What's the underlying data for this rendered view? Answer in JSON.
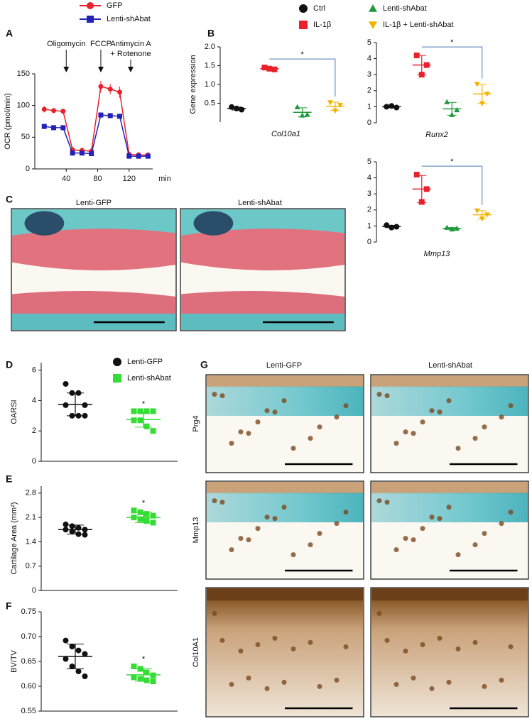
{
  "chart_data": [
    {
      "type": "line",
      "panel": "A",
      "x": [
        12,
        24,
        36,
        48,
        60,
        72,
        84,
        96,
        108,
        120,
        132,
        144
      ],
      "xlim": [
        0,
        150
      ],
      "xticks": [
        40,
        80,
        120
      ],
      "x_label": "min",
      "ylim": [
        0,
        150
      ],
      "yticks": [
        0,
        50,
        100,
        150
      ],
      "y_label": "OCR (pmol/min)",
      "annotations": [
        {
          "lines": [
            "Oligomycin"
          ],
          "x": 40
        },
        {
          "lines": [
            "FCCP"
          ],
          "x": 84
        },
        {
          "lines": [
            "Antimycin A",
            "+ Rotenone"
          ],
          "x": 122
        }
      ],
      "series": [
        {
          "name": "GFP",
          "color": "#e8212a",
          "marker": "circle",
          "values": [
            94,
            92,
            91,
            30,
            29,
            28,
            130,
            126,
            121,
            23,
            22,
            22
          ],
          "errors": [
            5,
            4,
            4,
            5,
            5,
            5,
            9,
            8,
            9,
            5,
            5,
            4
          ]
        },
        {
          "name": "Lenti-shAbat",
          "color": "#2222b8",
          "marker": "square",
          "values": [
            67,
            65,
            65,
            25,
            25,
            24,
            85,
            84,
            83,
            20,
            20,
            20
          ],
          "errors": [
            4,
            3,
            3,
            3,
            3,
            3,
            2,
            2,
            2,
            3,
            3,
            3
          ]
        }
      ]
    },
    {
      "type": "dot",
      "panel": "B",
      "legend": [
        {
          "name": "Ctrl",
          "color": "#111111",
          "marker": "circle"
        },
        {
          "name": "IL-1β",
          "color": "#e8212a",
          "marker": "square"
        },
        {
          "name": "Lenti-shAbat",
          "color": "#1f9a3a",
          "marker": "triangle"
        },
        {
          "name": "IL-1β + Lenti-shAbat",
          "color": "#f0b400",
          "marker": "triangle-down"
        }
      ],
      "y_label": "Gene expression",
      "x_label": "Col10a1",
      "ylim": [
        0,
        2
      ],
      "yticks": [
        0.5,
        {
          "value": 1,
          "label": "1.0"
        },
        1.5,
        {
          "value": 2,
          "label": "2.0"
        }
      ],
      "groups": [
        {
          "values": [
            0.4,
            0.33,
            0.36
          ],
          "mean": 0.36,
          "sd": 0.04
        },
        {
          "values": [
            1.45,
            1.4,
            1.42
          ],
          "mean": 1.42,
          "sd": 0.03
        },
        {
          "values": [
            0.4,
            0.2,
            0.18
          ],
          "mean": 0.26,
          "sd": 0.12
        },
        {
          "values": [
            0.52,
            0.45,
            0.3
          ],
          "mean": 0.42,
          "sd": 0.11
        }
      ],
      "significance": "*"
    },
    {
      "type": "dot",
      "x_label": "Runx2",
      "ylim": [
        0,
        5
      ],
      "yticks": [
        0,
        1,
        2,
        3,
        4,
        5
      ],
      "groups": [
        {
          "values": [
            1.0,
            0.95,
            1.05
          ],
          "mean": 1.0,
          "sd": 0.05
        },
        {
          "values": [
            4.2,
            3.6,
            3.0
          ],
          "mean": 3.6,
          "sd": 0.6
        },
        {
          "values": [
            1.3,
            0.8,
            0.5
          ],
          "mean": 0.87,
          "sd": 0.4
        },
        {
          "values": [
            2.4,
            1.8,
            1.2
          ],
          "mean": 1.8,
          "sd": 0.6
        }
      ],
      "significance": "*"
    },
    {
      "type": "dot",
      "x_label": "Mmp13",
      "ylim": [
        0,
        5
      ],
      "yticks": [
        0,
        1,
        2,
        3,
        4,
        5
      ],
      "groups": [
        {
          "values": [
            1.05,
            0.95,
            0.9
          ],
          "mean": 0.97,
          "sd": 0.07
        },
        {
          "values": [
            4.2,
            3.3,
            2.5
          ],
          "mean": 3.3,
          "sd": 0.85
        },
        {
          "values": [
            0.9,
            0.85,
            0.8
          ],
          "mean": 0.85,
          "sd": 0.05
        },
        {
          "values": [
            1.95,
            1.7,
            1.45
          ],
          "mean": 1.7,
          "sd": 0.25
        }
      ],
      "significance": "*"
    },
    {
      "type": "dot",
      "panel": "D",
      "legend": [
        {
          "name": "Lenti-GFP",
          "color": "#111111",
          "marker": "circle"
        },
        {
          "name": "Lenti-shAbat",
          "color": "#33dd33",
          "marker": "square"
        }
      ],
      "y_label": "OARSI",
      "ylim": [
        0,
        6.5
      ],
      "yticks": [
        0,
        2,
        4,
        6
      ],
      "groups": [
        {
          "values": [
            5.1,
            4.5,
            4.5,
            3.7,
            3.7,
            3.0,
            3.0,
            3.0
          ],
          "mean": 3.75,
          "sd": 0.75
        },
        {
          "values": [
            3.3,
            3.3,
            3.3,
            3.3,
            2.7,
            2.7,
            2.3,
            2.0
          ],
          "mean": 2.75,
          "sd": 0.5
        }
      ],
      "significance": "*"
    },
    {
      "type": "dot",
      "panel": "E",
      "y_label": "Cartilage Area (mm²)",
      "ylim": [
        0,
        3
      ],
      "yticks": [
        0,
        0.7,
        1.4,
        2.1,
        2.8
      ],
      "groups": [
        {
          "values": [
            1.9,
            1.85,
            1.8,
            1.75,
            1.75,
            1.7,
            1.62,
            1.6
          ],
          "mean": 1.75,
          "sd": 0.13
        },
        {
          "values": [
            2.3,
            2.25,
            2.2,
            2.15,
            2.1,
            2.05,
            2.0,
            1.95
          ],
          "mean": 2.1,
          "sd": 0.15
        }
      ],
      "significance": "*"
    },
    {
      "type": "dot",
      "panel": "F",
      "y_label": "BV/TV",
      "ylim": [
        0.55,
        0.75
      ],
      "yticks": [
        0.55,
        {
          "value": 0.6,
          "label": "0.60"
        },
        0.65,
        {
          "value": 0.7,
          "label": "0.70"
        },
        0.75
      ],
      "groups": [
        {
          "values": [
            0.692,
            0.68,
            0.672,
            0.665,
            0.655,
            0.64,
            0.63,
            0.62
          ],
          "mean": 0.66,
          "sd": 0.025
        },
        {
          "values": [
            0.64,
            0.635,
            0.628,
            0.622,
            0.618,
            0.615,
            0.612,
            0.61
          ],
          "mean": 0.623,
          "sd": 0.013
        }
      ],
      "significance": "*"
    }
  ],
  "images": [
    {
      "panel": "C",
      "columns": [
        "Lenti-GFP",
        "Lenti-shAbat"
      ]
    },
    {
      "panel": "G",
      "columns": [
        "Lenti-GFP",
        "Lenti-shAbat"
      ],
      "rows": [
        "Prg4",
        "Mmp13",
        "Col10A1"
      ]
    }
  ]
}
